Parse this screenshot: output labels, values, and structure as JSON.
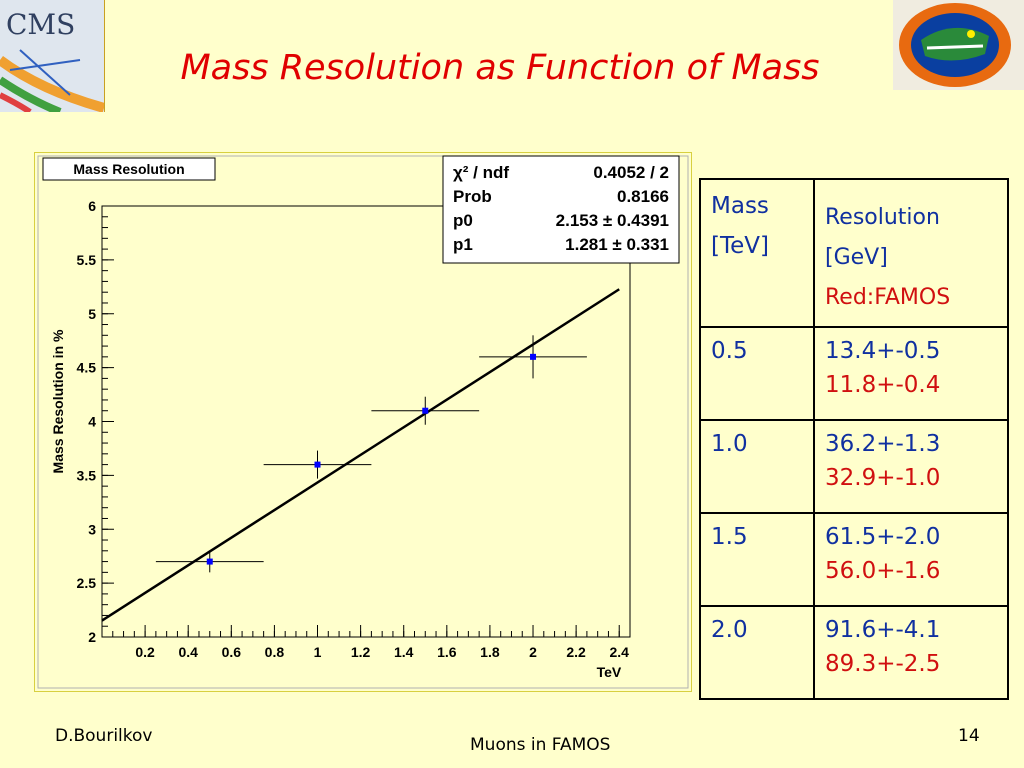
{
  "slide": {
    "title": "Mass Resolution as Function of Mass",
    "logo_left_text": "CMS",
    "footer_left": "D.Bourilkov",
    "footer_center": "Muons in FAMOS",
    "footer_right": "14"
  },
  "chart_data": {
    "type": "scatter",
    "title": "Mass Resolution",
    "xlabel": "TeV",
    "ylabel": "Mass Resolution in %",
    "xlim": [
      0.0,
      2.45
    ],
    "ylim": [
      2.0,
      6.0
    ],
    "x_ticks": [
      "0.2",
      "0.4",
      "0.6",
      "0.8",
      "1",
      "1.2",
      "1.4",
      "1.6",
      "1.8",
      "2",
      "2.2",
      "2.4"
    ],
    "y_ticks": [
      "2",
      "2.5",
      "3",
      "3.5",
      "4",
      "4.5",
      "5",
      "5.5",
      "6"
    ],
    "points": [
      {
        "x": 0.5,
        "y": 2.7,
        "xerr": 0.25,
        "yerr": 0.1
      },
      {
        "x": 1.0,
        "y": 3.6,
        "xerr": 0.25,
        "yerr": 0.13
      },
      {
        "x": 1.5,
        "y": 4.1,
        "xerr": 0.25,
        "yerr": 0.13
      },
      {
        "x": 2.0,
        "y": 4.6,
        "xerr": 0.25,
        "yerr": 0.2
      }
    ],
    "fit": {
      "p0": 2.153,
      "p1": 1.281,
      "x_range": [
        0.0,
        2.4
      ]
    },
    "stats": [
      {
        "label": "χ² / ndf",
        "value": "0.4052 / 2"
      },
      {
        "label": "Prob",
        "value": "0.8166"
      },
      {
        "label": "p0",
        "value": "2.153 ± 0.4391"
      },
      {
        "label": "p1",
        "value": "1.281 ± 0.331"
      }
    ],
    "marker_color": "#0000ff",
    "grid": false
  },
  "table": {
    "header_mass": [
      "Mass",
      "[TeV]"
    ],
    "header_res": [
      "Resolution",
      "[GeV]",
      "Red:FAMOS"
    ],
    "rows": [
      {
        "mass": "0.5",
        "res": "13.4+-0.5",
        "famos": "11.8+-0.4"
      },
      {
        "mass": "1.0",
        "res": "36.2+-1.3",
        "famos": "32.9+-1.0"
      },
      {
        "mass": "1.5",
        "res": "61.5+-2.0",
        "famos": "56.0+-1.6"
      },
      {
        "mass": "2.0",
        "res": "91.6+-4.1",
        "famos": "89.3+-2.5"
      }
    ]
  }
}
